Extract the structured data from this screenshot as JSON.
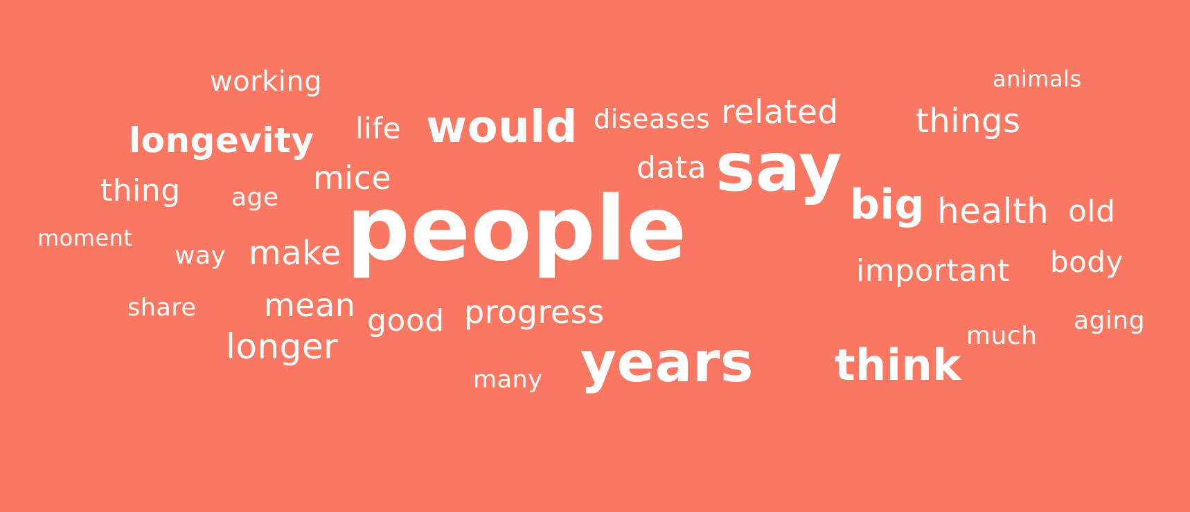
{
  "background_color": "#fa7762",
  "text_color": "#ffffff",
  "words": [
    {
      "text": "working"
    },
    {
      "text": "animals"
    },
    {
      "text": "diseases"
    },
    {
      "text": "related"
    },
    {
      "text": "things"
    },
    {
      "text": "life"
    },
    {
      "text": "would"
    },
    {
      "text": "longevity"
    },
    {
      "text": "data"
    },
    {
      "text": "say"
    },
    {
      "text": "mice"
    },
    {
      "text": "thing"
    },
    {
      "text": "age"
    },
    {
      "text": "people"
    },
    {
      "text": "big"
    },
    {
      "text": "health"
    },
    {
      "text": "old"
    },
    {
      "text": "moment"
    },
    {
      "text": "way"
    },
    {
      "text": "make"
    },
    {
      "text": "body"
    },
    {
      "text": "important"
    },
    {
      "text": "share"
    },
    {
      "text": "mean"
    },
    {
      "text": "good"
    },
    {
      "text": "progress"
    },
    {
      "text": "aging"
    },
    {
      "text": "much"
    },
    {
      "text": "longer"
    },
    {
      "text": "years"
    },
    {
      "text": "think"
    },
    {
      "text": "many"
    }
  ]
}
